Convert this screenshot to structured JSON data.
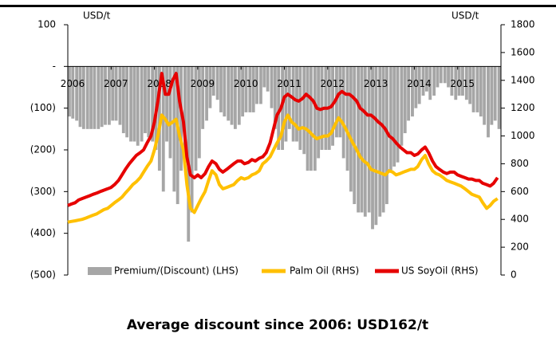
{
  "chart_data": {
    "type": "line",
    "ylabel": "USD/t",
    "y2label": "USD/t",
    "annotation": "Average discount since 2006: USD162/t",
    "legend": "bottom",
    "xlim": [
      2006,
      2016
    ],
    "xticks": [
      2006,
      2007,
      2008,
      2009,
      2010,
      2011,
      2012,
      2013,
      2014,
      2015
    ],
    "ylim": [
      -500,
      100
    ],
    "yticks": [
      {
        "value": -500,
        "label": "(500)"
      },
      {
        "value": -400,
        "label": "(400)"
      },
      {
        "value": -300,
        "label": "(300)"
      },
      {
        "value": -200,
        "label": "(200)"
      },
      {
        "value": -100,
        "label": "(100)"
      },
      {
        "value": 0,
        "label": "-"
      },
      100
    ],
    "y2lim": [
      0,
      1800
    ],
    "y2ticks": [
      0,
      200,
      400,
      600,
      800,
      1000,
      1200,
      1400,
      1600,
      1800
    ],
    "x": [
      2006.0,
      2006.08,
      2006.17,
      2006.25,
      2006.33,
      2006.42,
      2006.5,
      2006.58,
      2006.67,
      2006.75,
      2006.83,
      2006.92,
      2007.0,
      2007.08,
      2007.17,
      2007.25,
      2007.33,
      2007.42,
      2007.5,
      2007.58,
      2007.67,
      2007.75,
      2007.83,
      2007.92,
      2008.0,
      2008.08,
      2008.17,
      2008.25,
      2008.33,
      2008.42,
      2008.5,
      2008.58,
      2008.67,
      2008.75,
      2008.83,
      2008.92,
      2009.0,
      2009.08,
      2009.17,
      2009.25,
      2009.33,
      2009.42,
      2009.5,
      2009.58,
      2009.67,
      2009.75,
      2009.83,
      2009.92,
      2010.0,
      2010.08,
      2010.17,
      2010.25,
      2010.33,
      2010.42,
      2010.5,
      2010.58,
      2010.67,
      2010.75,
      2010.83,
      2010.92,
      2011.0,
      2011.08,
      2011.17,
      2011.25,
      2011.33,
      2011.42,
      2011.5,
      2011.58,
      2011.67,
      2011.75,
      2011.83,
      2011.92,
      2012.0,
      2012.08,
      2012.17,
      2012.25,
      2012.33,
      2012.42,
      2012.5,
      2012.58,
      2012.67,
      2012.75,
      2012.83,
      2012.92,
      2013.0,
      2013.08,
      2013.17,
      2013.25,
      2013.33,
      2013.42,
      2013.5,
      2013.58,
      2013.67,
      2013.75,
      2013.83,
      2013.92,
      2014.0,
      2014.08,
      2014.17,
      2014.25,
      2014.33,
      2014.42,
      2014.5,
      2014.58,
      2014.67,
      2014.75,
      2014.83,
      2014.92,
      2015.0,
      2015.08,
      2015.17,
      2015.25,
      2015.33,
      2015.42,
      2015.5,
      2015.58,
      2015.67,
      2015.75,
      2015.83,
      2015.92
    ],
    "series": [
      {
        "name": "Premium/(Discount) (LHS)",
        "type": "bar",
        "axis": "y",
        "color": "#a6a6a6",
        "values": [
          -120,
          -125,
          -130,
          -145,
          -150,
          -150,
          -150,
          -150,
          -150,
          -145,
          -140,
          -140,
          -130,
          -130,
          -140,
          -160,
          -170,
          -180,
          -180,
          -190,
          -180,
          -160,
          -170,
          -180,
          -200,
          -250,
          -300,
          -180,
          -220,
          -300,
          -330,
          -250,
          -200,
          -420,
          -350,
          -250,
          -220,
          -150,
          -130,
          -100,
          -70,
          -80,
          -110,
          -120,
          -130,
          -140,
          -150,
          -140,
          -120,
          -110,
          -110,
          -110,
          -90,
          -90,
          -50,
          -60,
          -100,
          -150,
          -200,
          -200,
          -180,
          -150,
          -180,
          -180,
          -200,
          -210,
          -250,
          -250,
          -250,
          -220,
          -200,
          -200,
          -200,
          -190,
          -170,
          -170,
          -220,
          -250,
          -300,
          -330,
          -350,
          -350,
          -360,
          -350,
          -390,
          -380,
          -360,
          -350,
          -330,
          -250,
          -240,
          -230,
          -190,
          -160,
          -130,
          -120,
          -100,
          -90,
          -70,
          -60,
          -80,
          -70,
          -50,
          -40,
          -40,
          -50,
          -70,
          -80,
          -70,
          -70,
          -80,
          -90,
          -110,
          -110,
          -120,
          -140,
          -170,
          -140,
          -130,
          -150
        ]
      },
      {
        "name": "Palm Oil (RHS)",
        "type": "line",
        "axis": "y2",
        "color": "#ffc000",
        "values": [
          380,
          385,
          390,
          395,
          400,
          410,
          420,
          430,
          440,
          455,
          470,
          480,
          500,
          520,
          540,
          560,
          590,
          620,
          650,
          670,
          700,
          740,
          780,
          820,
          900,
          1000,
          1150,
          1120,
          1080,
          1100,
          1120,
          1000,
          900,
          650,
          480,
          450,
          500,
          550,
          600,
          680,
          750,
          720,
          650,
          620,
          630,
          640,
          650,
          680,
          700,
          690,
          700,
          720,
          730,
          750,
          800,
          820,
          850,
          900,
          950,
          1000,
          1100,
          1150,
          1100,
          1080,
          1050,
          1060,
          1050,
          1030,
          1000,
          980,
          990,
          1000,
          1000,
          1020,
          1080,
          1130,
          1100,
          1050,
          1000,
          950,
          900,
          850,
          820,
          800,
          760,
          750,
          740,
          730,
          720,
          750,
          740,
          720,
          730,
          740,
          750,
          760,
          760,
          780,
          830,
          860,
          800,
          750,
          730,
          720,
          700,
          680,
          670,
          660,
          650,
          640,
          620,
          600,
          580,
          570,
          560,
          520,
          480,
          500,
          530,
          550
        ]
      },
      {
        "name": "US SoyOil (RHS)",
        "type": "line",
        "axis": "y2",
        "color": "#e60000",
        "values": [
          500,
          510,
          520,
          540,
          550,
          560,
          570,
          580,
          590,
          600,
          610,
          620,
          630,
          650,
          680,
          720,
          760,
          800,
          830,
          860,
          880,
          900,
          950,
          1000,
          1100,
          1250,
          1450,
          1300,
          1300,
          1400,
          1450,
          1250,
          1100,
          850,
          720,
          700,
          720,
          700,
          730,
          780,
          820,
          800,
          760,
          740,
          760,
          780,
          800,
          820,
          820,
          800,
          810,
          830,
          820,
          840,
          850,
          880,
          950,
          1050,
          1150,
          1200,
          1280,
          1300,
          1280,
          1260,
          1250,
          1270,
          1300,
          1280,
          1250,
          1200,
          1190,
          1200,
          1200,
          1210,
          1250,
          1300,
          1320,
          1300,
          1300,
          1280,
          1250,
          1200,
          1180,
          1150,
          1150,
          1130,
          1100,
          1080,
          1050,
          1000,
          980,
          950,
          920,
          900,
          880,
          880,
          860,
          870,
          900,
          920,
          880,
          820,
          780,
          760,
          740,
          730,
          740,
          740,
          720,
          710,
          700,
          690,
          690,
          680,
          680,
          660,
          650,
          640,
          660,
          700
        ]
      }
    ]
  }
}
